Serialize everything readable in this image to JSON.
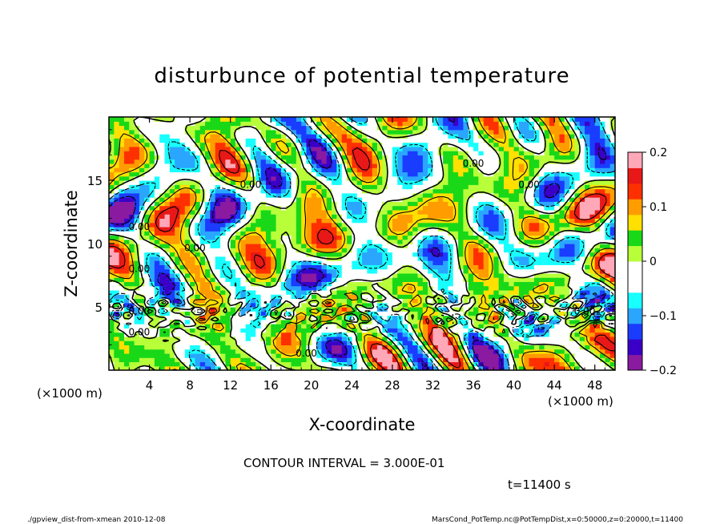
{
  "chart_data": {
    "type": "heatmap",
    "title": "disturbunce of potential temperature",
    "xlabel": "X-coordinate",
    "ylabel": "Z-coordinate",
    "x_unit": "(×1000 m)",
    "y_unit": "(×1000 m)",
    "xlim": [
      0,
      50
    ],
    "ylim": [
      0,
      20
    ],
    "x_ticks": [
      4,
      8,
      12,
      16,
      20,
      24,
      28,
      32,
      36,
      40,
      44,
      48
    ],
    "y_ticks": [
      5,
      10,
      15
    ],
    "colorbar": {
      "min": -0.2,
      "max": 0.2,
      "tick_values": [
        0.2,
        0.1,
        0,
        -0.1,
        -0.2
      ],
      "tick_labels": [
        "0.2",
        "0.1",
        "0",
        "−0.1",
        "−0.2"
      ],
      "colors": [
        "#8a1aa0",
        "#3a00c8",
        "#1a3cff",
        "#2aa6ff",
        "#18ffff",
        "#ffffff",
        "#ffffff",
        "#b8ff3a",
        "#18d818",
        "#ffe000",
        "#ff9c00",
        "#ff3000",
        "#e81818",
        "#ffa8b8"
      ]
    },
    "contour_interval": "CONTOUR INTERVAL = 3.000E-01",
    "contour_label": "0.00",
    "time_label": "t=11400 s"
  },
  "footer": {
    "left": "./gpview_dist-from-xmean 2010-12-08",
    "right": "MarsCond_PotTemp.nc@PotTempDist,x=0:50000,z=0:20000,t=11400"
  }
}
